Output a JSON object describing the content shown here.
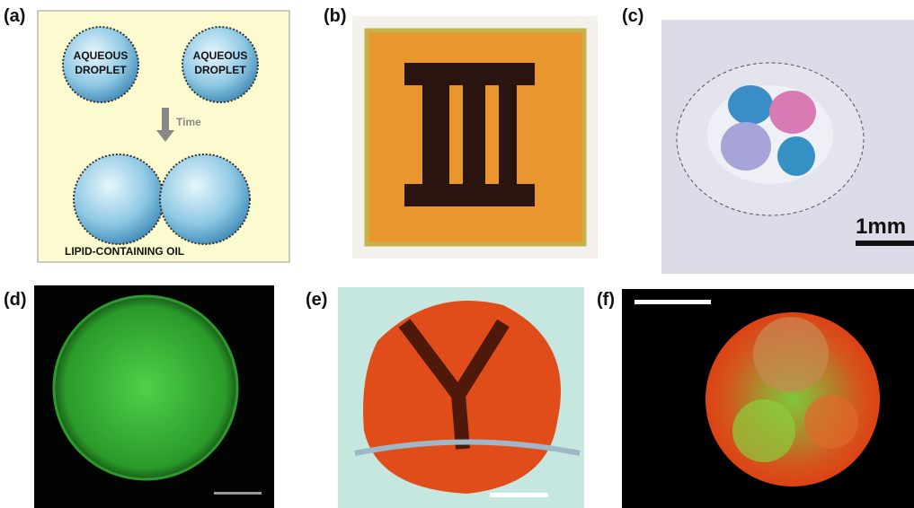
{
  "panels": {
    "a": {
      "label": "(a)",
      "droplets": [
        [
          "AQUEOUS",
          "DROPLET"
        ],
        [
          "AQUEOUS",
          "DROPLET"
        ]
      ],
      "arrow_label": "Time",
      "medium_label": "LIPID-CONTAINING OIL"
    },
    "b": {
      "label": "(b)"
    },
    "c": {
      "label": "(c)",
      "scale_bar": "1mm"
    },
    "d": {
      "label": "(d)"
    },
    "e": {
      "label": "(e)"
    },
    "f": {
      "label": "(f)"
    }
  }
}
